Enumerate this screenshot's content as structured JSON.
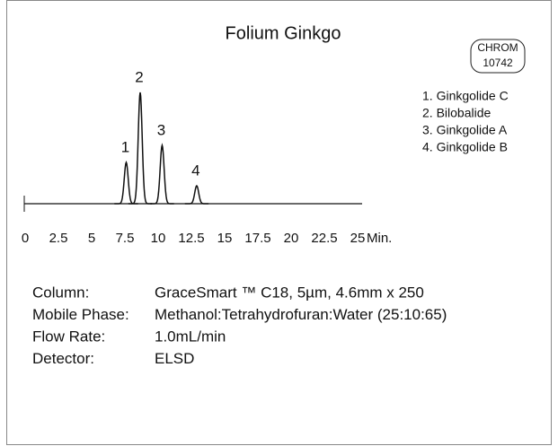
{
  "chart_data": {
    "type": "chromatogram",
    "title": "Folium Ginkgo",
    "x": [
      7.6,
      8.65,
      10.3,
      12.9
    ],
    "values": [
      46,
      124,
      65,
      20
    ],
    "peak_labels": [
      "1",
      "2",
      "3",
      "4"
    ],
    "legend": [
      "1. Ginkgolide C",
      "2. Bilobalide",
      "3. Ginkgolide A",
      "4. Ginkgolide B"
    ],
    "xlim": [
      0,
      25
    ],
    "xticks": [
      0,
      2.5,
      5,
      7.5,
      10,
      12.5,
      15,
      17.5,
      20,
      22.5,
      25
    ],
    "x_unit": "Min.",
    "ylim": [
      0,
      130
    ],
    "color": "#111111",
    "badge": [
      "CHROM",
      "10742"
    ]
  },
  "conditions": [
    {
      "label": "Column:",
      "value": "GraceSmart ™  C18, 5µm, 4.6mm x 250"
    },
    {
      "label": "Mobile Phase:",
      "value": "Methanol:Tetrahydrofuran:Water (25:10:65)"
    },
    {
      "label": "Flow Rate:",
      "value": "1.0mL/min"
    },
    {
      "label": "Detector:",
      "value": "ELSD"
    }
  ]
}
